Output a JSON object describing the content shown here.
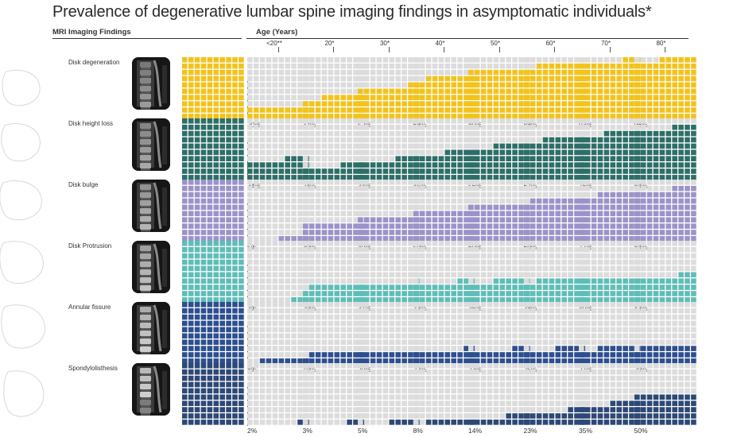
{
  "title": "Prevalence of degenerative lumbar spine imaging findings in asymptomatic individuals*",
  "headers": {
    "findings": "MRI Imaging Findings",
    "age": "Age (Years)"
  },
  "colors": {
    "empty": "#dcdcdc",
    "Disk degeneration": "#f2c31d",
    "Disk height loss": "#2d6e68",
    "Disk bulge": "#9b93c8",
    "Disk Protrusion": "#5fbdb7",
    "Annular fissure": "#2d4f8e",
    "Spondylolisthesis": "#2d4875"
  },
  "chart_data": {
    "type": "waffle",
    "categories": [
      "<20**",
      "20*",
      "30*",
      "40*",
      "50*",
      "60*",
      "70*",
      "80*"
    ],
    "series": [
      {
        "name": "Disk degeneration",
        "values": [
          20,
          37,
          52,
          68,
          80,
          88,
          93,
          96
        ],
        "labels": [
          "20%",
          "37%",
          "52%",
          "68%",
          "80%",
          "88%",
          "93%",
          "96%"
        ]
      },
      {
        "name": "Disk height loss",
        "values": [
          34,
          24,
          34,
          45,
          56,
          67,
          76,
          84
        ],
        "labels": [
          "34%",
          "24%",
          "34%",
          "45%",
          "56%",
          "67%",
          "76%",
          "84%"
        ]
      },
      {
        "name": "Disk bulge",
        "values": [
          5,
          30,
          40,
          50,
          60,
          69,
          77,
          84
        ],
        "labels": [
          "5%",
          "30%",
          "40%",
          "50%",
          "60%",
          "69%",
          "77%",
          "84%"
        ]
      },
      {
        "name": "Disk Protrusion",
        "values": [
          3,
          29,
          31,
          33,
          36,
          38,
          40,
          43
        ],
        "labels": [
          "3%",
          "29%",
          "31%",
          "33%",
          "36%",
          "38%",
          "40%",
          "43%"
        ]
      },
      {
        "name": "Annular fissure",
        "values": [
          8,
          19,
          20,
          22,
          23,
          25,
          27,
          29
        ],
        "labels": [
          "8%",
          "19%",
          "20%",
          "22%",
          "23%",
          "25%",
          "27%",
          "29%"
        ]
      },
      {
        "name": "Spondylolisthesis",
        "values": [
          2,
          3,
          5,
          8,
          14,
          23,
          35,
          50
        ],
        "labels": [
          "2%",
          "3%",
          "5%",
          "8%",
          "14%",
          "23%",
          "35%",
          "50%"
        ]
      }
    ]
  }
}
